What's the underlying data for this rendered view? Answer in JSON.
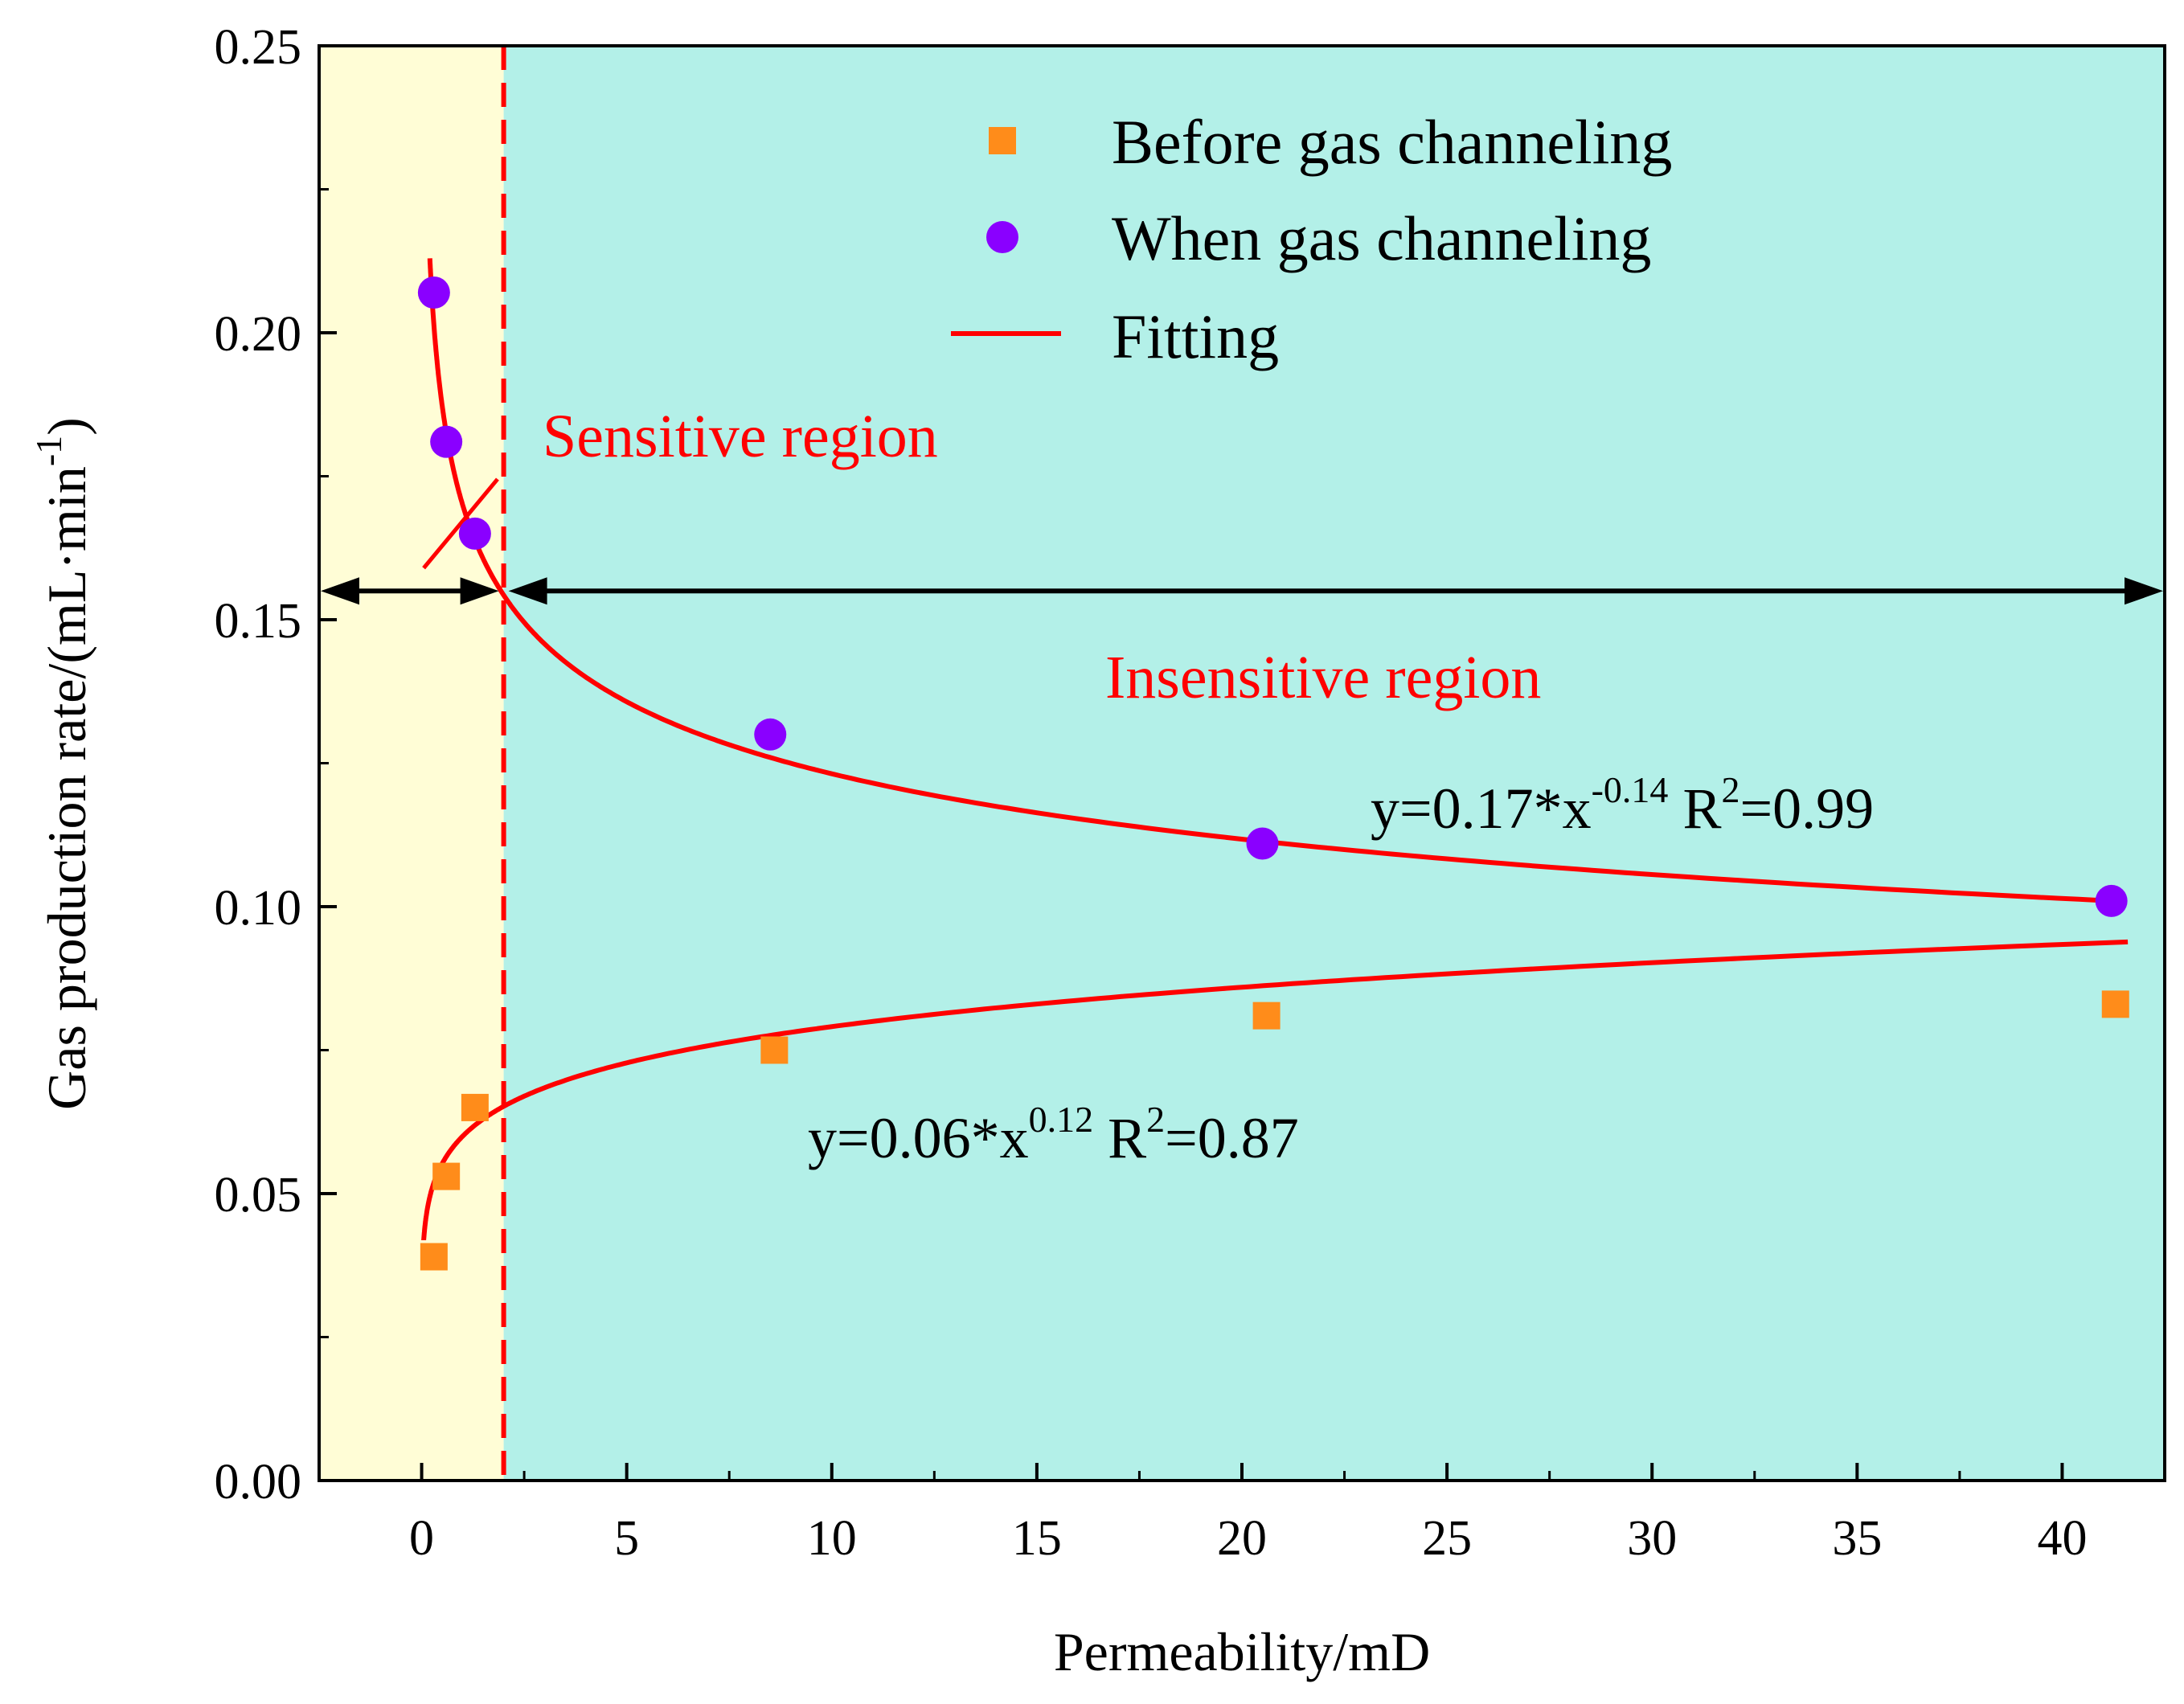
{
  "chart_data": {
    "type": "scatter",
    "xlabel": "Permeability/mD",
    "ylabel_main": "Gas production rate/(mL·min",
    "ylabel_sup": "-1",
    "ylabel_close": ")",
    "xlim": [
      -2.5,
      42.5
    ],
    "ylim": [
      0,
      0.25
    ],
    "xticks": [
      0,
      5,
      10,
      15,
      20,
      25,
      30,
      35,
      40
    ],
    "xtick_labels": [
      "0",
      "5",
      "10",
      "15",
      "20",
      "25",
      "30",
      "35",
      "40"
    ],
    "yticks": [
      0,
      0.05,
      0.1,
      0.15,
      0.2,
      0.25
    ],
    "ytick_labels": [
      "0.00",
      "0.05",
      "0.10",
      "0.15",
      "0.20",
      "0.25"
    ],
    "region_boundary_x": 2,
    "boundary_arrow_y": 0.155,
    "regions": {
      "sensitive": {
        "label": "Sensitive region",
        "color": "#FFFDD6"
      },
      "insensitive": {
        "label": "Insensitive region",
        "color": "#B3F0E8"
      }
    },
    "series": [
      {
        "name": "Before gas channeling",
        "marker": "square",
        "color": "#FF8C1A",
        "x": [
          0.3,
          0.6,
          1.3,
          8.6,
          20.6,
          41.3
        ],
        "y": [
          0.039,
          0.053,
          0.065,
          0.075,
          0.081,
          0.083
        ]
      },
      {
        "name": "When gas channeling",
        "marker": "circle",
        "color": "#8A00FF",
        "x": [
          0.3,
          0.6,
          1.3,
          8.5,
          20.5,
          41.2
        ],
        "y": [
          0.207,
          0.181,
          0.165,
          0.13,
          0.111,
          0.101
        ]
      }
    ],
    "fits": [
      {
        "name": "Fitting",
        "color": "#FF0000",
        "a": 0.17,
        "b": -0.14,
        "xrange": [
          0.2,
          41.5
        ],
        "eq_main": "y=0.17*x",
        "eq_exp": "-0.14",
        "eq_r": " R",
        "eq_r_exp": "2",
        "eq_r_val": "=0.99"
      },
      {
        "name": "Fitting",
        "color": "#FF0000",
        "a": 0.06,
        "b": 0.12,
        "xrange": [
          0.05,
          41.6
        ],
        "eq_main": "y=0.06*x",
        "eq_exp": "0.12",
        "eq_r": " R",
        "eq_r_exp": "2",
        "eq_r_val": "=0.87"
      }
    ],
    "legend": {
      "placement": "top-right",
      "entries": [
        "Before gas channeling",
        "When gas channeling",
        "Fitting"
      ]
    }
  }
}
